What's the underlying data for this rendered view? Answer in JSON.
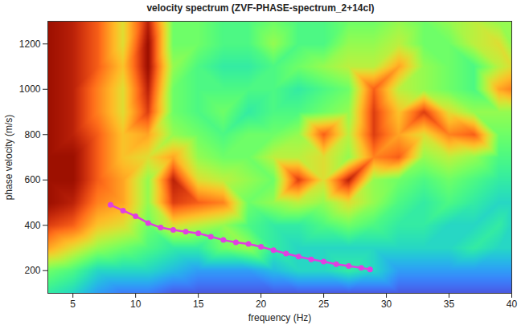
{
  "chart_data": {
    "type": "heatmap",
    "title": "velocity spectrum (ZVF-PHASE-spectrum_2+14cl)",
    "x_label": "frequency (Hz)",
    "y_label": "phase velocity (m/s)",
    "xlim": [
      3,
      40
    ],
    "xticks": [
      5,
      10,
      15,
      20,
      25,
      30,
      35,
      40
    ],
    "ylim": [
      100,
      1300
    ],
    "yticks": [
      200,
      400,
      600,
      800,
      1000,
      1200
    ],
    "heatmap": {
      "frequency": [
        3,
        5,
        7,
        9,
        11,
        13,
        15,
        17,
        19,
        21,
        23,
        25,
        27,
        29,
        31,
        33,
        35,
        37,
        39,
        40
      ],
      "velocity": [
        100,
        200,
        300,
        400,
        500,
        600,
        700,
        800,
        900,
        1000,
        1100,
        1200,
        1300
      ],
      "values": [
        [
          0.35,
          0.3,
          0.2,
          0.15,
          0.15,
          0.1,
          0.1,
          0.1,
          0.1,
          0.1,
          0.1,
          0.1,
          0.1,
          0.1,
          0.1,
          0.1,
          0.1,
          0.1,
          0.1,
          0.1
        ],
        [
          0.45,
          0.4,
          0.3,
          0.3,
          0.3,
          0.25,
          0.2,
          0.2,
          0.2,
          0.25,
          0.3,
          0.3,
          0.35,
          0.3,
          0.2,
          0.2,
          0.2,
          0.2,
          0.2,
          0.2
        ],
        [
          0.7,
          0.6,
          0.5,
          0.45,
          0.4,
          0.35,
          0.35,
          0.45,
          0.5,
          0.35,
          0.3,
          0.3,
          0.3,
          0.3,
          0.3,
          0.3,
          0.3,
          0.35,
          0.3,
          0.3
        ],
        [
          0.85,
          0.8,
          0.65,
          0.6,
          0.45,
          0.6,
          0.55,
          0.5,
          0.4,
          0.35,
          0.35,
          0.4,
          0.45,
          0.4,
          0.35,
          0.35,
          0.3,
          0.3,
          0.35,
          0.3
        ],
        [
          0.95,
          0.9,
          0.75,
          0.7,
          0.5,
          0.85,
          0.8,
          0.75,
          0.45,
          0.5,
          0.55,
          0.5,
          0.6,
          0.5,
          0.4,
          0.35,
          0.4,
          0.35,
          0.3,
          0.3
        ],
        [
          0.95,
          0.95,
          0.8,
          0.7,
          0.5,
          0.9,
          0.6,
          0.55,
          0.5,
          0.45,
          0.85,
          0.6,
          0.9,
          0.5,
          0.45,
          0.4,
          0.45,
          0.4,
          0.35,
          0.35
        ],
        [
          0.95,
          0.95,
          0.8,
          0.65,
          0.6,
          0.7,
          0.5,
          0.45,
          0.45,
          0.55,
          0.55,
          0.6,
          0.5,
          0.75,
          0.8,
          0.5,
          0.55,
          0.5,
          0.4,
          0.4
        ],
        [
          0.95,
          0.9,
          0.8,
          0.65,
          0.7,
          0.5,
          0.45,
          0.4,
          0.45,
          0.45,
          0.5,
          0.8,
          0.55,
          0.85,
          0.7,
          0.6,
          0.75,
          0.8,
          0.45,
          0.45
        ],
        [
          0.95,
          0.9,
          0.75,
          0.6,
          0.85,
          0.45,
          0.4,
          0.45,
          0.35,
          0.4,
          0.4,
          0.45,
          0.5,
          0.85,
          0.65,
          0.85,
          0.6,
          0.5,
          0.5,
          0.5
        ],
        [
          0.95,
          0.9,
          0.75,
          0.6,
          0.9,
          0.45,
          0.4,
          0.4,
          0.4,
          0.4,
          0.35,
          0.4,
          0.45,
          0.8,
          0.55,
          0.5,
          0.45,
          0.4,
          0.7,
          0.75
        ],
        [
          0.95,
          0.9,
          0.8,
          0.65,
          0.95,
          0.5,
          0.4,
          0.35,
          0.35,
          0.4,
          0.45,
          0.5,
          0.55,
          0.55,
          0.7,
          0.5,
          0.45,
          0.4,
          0.55,
          0.6
        ],
        [
          0.95,
          0.9,
          0.8,
          0.6,
          0.95,
          0.45,
          0.45,
          0.4,
          0.4,
          0.5,
          0.4,
          0.4,
          0.5,
          0.5,
          0.55,
          0.45,
          0.45,
          0.55,
          0.6,
          0.5
        ],
        [
          0.95,
          0.9,
          0.8,
          0.6,
          0.9,
          0.45,
          0.45,
          0.4,
          0.4,
          0.45,
          0.4,
          0.4,
          0.45,
          0.45,
          0.5,
          0.45,
          0.5,
          0.55,
          0.5,
          0.5
        ]
      ],
      "zlim": [
        0,
        1
      ]
    },
    "series": [
      {
        "type": "line",
        "color": "#e040e0",
        "marker": "circle",
        "x": [
          8,
          9,
          10,
          11,
          12,
          13,
          14,
          15,
          16,
          17,
          18,
          19,
          20,
          21,
          22,
          23,
          24,
          25,
          26,
          27,
          28,
          28.7
        ],
        "values": [
          490,
          465,
          440,
          410,
          390,
          380,
          372,
          365,
          350,
          335,
          325,
          318,
          305,
          290,
          275,
          262,
          250,
          240,
          228,
          220,
          212,
          205
        ]
      }
    ]
  }
}
